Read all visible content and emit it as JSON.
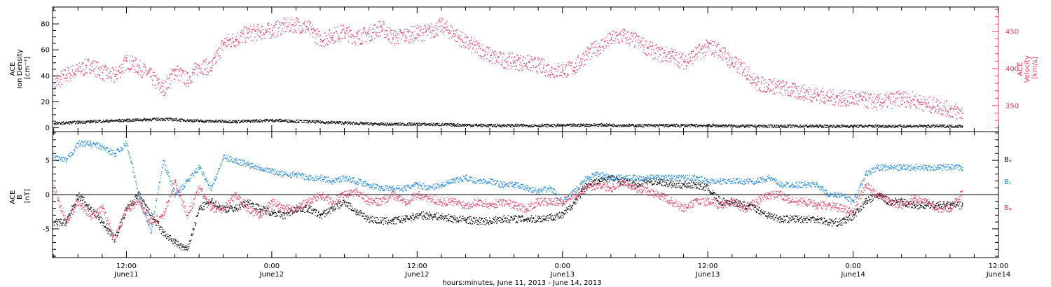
{
  "colors": {
    "black": "#000000",
    "pink": "#e83a64",
    "blue": "#1f86e0"
  },
  "xaxis": {
    "title": "hours:minutes, June 11, 2013 - June 14, 2013",
    "ticks": [
      {
        "t": 12,
        "time": "12:00",
        "date": "June11"
      },
      {
        "t": 24,
        "time": "0:00",
        "date": "June12"
      },
      {
        "t": 36,
        "time": "12:00",
        "date": "June12"
      },
      {
        "t": 48,
        "time": "0:00",
        "date": "June13"
      },
      {
        "t": 60,
        "time": "12:00",
        "date": "June13"
      },
      {
        "t": 72,
        "time": "0:00",
        "date": "June14"
      },
      {
        "t": 84,
        "time": "12:00",
        "date": "June14"
      }
    ]
  },
  "chart_data": [
    {
      "type": "scatter",
      "panel": "top",
      "xunit": "hours since 2013-06-11 00:00",
      "xlim": [
        5.9,
        84
      ],
      "left_axis": {
        "label_lines": [
          "ACE",
          "Ion Density",
          "[cm⁻³]"
        ],
        "ylim": [
          -3,
          93
        ],
        "ticks": [
          0,
          20,
          40,
          60,
          80
        ],
        "color": "#000000"
      },
      "right_axis": {
        "label_lines": [
          "ACE",
          "Velocity",
          "[km/s]"
        ],
        "ylim": [
          315,
          483
        ],
        "ticks": [
          350,
          400,
          450
        ],
        "color": "#e83a64"
      },
      "series": [
        {
          "axis": "right",
          "color": "#e83a64",
          "x": [
            6,
            7,
            8,
            9,
            10,
            11,
            12,
            13,
            14,
            15,
            16,
            17,
            18,
            19,
            20,
            21,
            22,
            23,
            24,
            25,
            26,
            27,
            28,
            29,
            30,
            31,
            32,
            33,
            34,
            35,
            36,
            37,
            38,
            39,
            40,
            41,
            42,
            43,
            44,
            45,
            46,
            47,
            48,
            49,
            50,
            51,
            52,
            53,
            54,
            55,
            56,
            57,
            58,
            59,
            60,
            61,
            62,
            63,
            64,
            65,
            66,
            67,
            68,
            69,
            70,
            71,
            72,
            73,
            74,
            75,
            76,
            77,
            78,
            79,
            80,
            81
          ],
          "values": [
            380,
            392,
            398,
            405,
            395,
            390,
            410,
            402,
            390,
            372,
            398,
            385,
            404,
            402,
            435,
            440,
            448,
            450,
            452,
            458,
            460,
            455,
            440,
            445,
            450,
            442,
            448,
            456,
            442,
            445,
            448,
            450,
            458,
            448,
            435,
            428,
            418,
            412,
            410,
            408,
            405,
            398,
            398,
            402,
            420,
            430,
            440,
            445,
            438,
            428,
            420,
            418,
            410,
            420,
            430,
            425,
            408,
            400,
            380,
            378,
            375,
            370,
            368,
            365,
            362,
            360,
            360,
            358,
            355,
            358,
            360,
            358,
            352,
            350,
            345,
            340
          ]
        },
        {
          "axis": "left",
          "color": "#000000",
          "x": [
            6,
            9,
            12,
            15,
            18,
            21,
            24,
            27,
            30,
            33,
            36,
            39,
            42,
            45,
            48,
            51,
            54,
            57,
            60,
            63,
            66,
            69,
            72,
            75,
            78,
            81
          ],
          "values": [
            3.5,
            5,
            6,
            7,
            5.5,
            5,
            6,
            5,
            4,
            3,
            3,
            2.5,
            2,
            2,
            2,
            2.5,
            2,
            2,
            2,
            1.5,
            1.5,
            1.5,
            1.5,
            1.5,
            1.5,
            1.5
          ]
        }
      ]
    },
    {
      "type": "scatter",
      "panel": "bottom",
      "xunit": "hours since 2013-06-11 00:00",
      "xlim": [
        5.9,
        84
      ],
      "yaxis": {
        "label_lines": [
          "ACE",
          "B",
          "[nT]"
        ],
        "ylim": [
          -9.2,
          9.2
        ],
        "ticks": [
          -5,
          0,
          5
        ]
      },
      "series": [
        {
          "name": "Bₓ",
          "color": "#000000",
          "x": [
            6,
            7,
            8,
            9,
            10,
            11,
            12,
            13,
            14,
            15,
            16,
            17,
            18,
            19,
            20,
            21,
            22,
            23,
            24,
            25,
            26,
            27,
            28,
            29,
            30,
            31,
            32,
            33,
            34,
            35,
            36,
            37,
            38,
            39,
            40,
            41,
            42,
            43,
            44,
            45,
            46,
            47,
            48,
            49,
            50,
            51,
            52,
            53,
            54,
            55,
            56,
            57,
            58,
            59,
            60,
            61,
            62,
            63,
            64,
            65,
            66,
            67,
            68,
            69,
            70,
            71,
            72,
            73,
            74,
            75,
            76,
            77,
            78,
            79,
            80,
            81
          ],
          "values": [
            -4,
            -4,
            0,
            -2,
            -4,
            -6.5,
            -2,
            0,
            -3,
            -5.5,
            -7,
            -8,
            -2,
            -1,
            -2,
            -2,
            -1,
            -2,
            -2.5,
            -3,
            -2,
            -2,
            -3,
            -2,
            -1,
            -2.5,
            -3.5,
            -3.8,
            -3.8,
            -3.5,
            -3,
            -3,
            -3.2,
            -3.5,
            -3.6,
            -3.8,
            -3.8,
            -3.5,
            -3.5,
            -3.5,
            -3.5,
            -3.2,
            -3,
            -1,
            1.5,
            2,
            2.5,
            2,
            1.5,
            2,
            2,
            1.5,
            1.5,
            1.5,
            1,
            -1,
            -1,
            -1.5,
            -2,
            -3,
            -3.5,
            -3.5,
            -3.5,
            -3.5,
            -4,
            -4,
            -3,
            -1,
            0,
            -1,
            -1,
            -1.5,
            -1.5,
            -1.5,
            -1.5,
            -1.5
          ]
        },
        {
          "name": "Bᵧ",
          "color": "#1f86e0",
          "x": [
            6,
            7,
            8,
            9,
            10,
            11,
            12,
            13,
            14,
            15,
            16,
            17,
            18,
            19,
            20,
            21,
            22,
            23,
            24,
            25,
            26,
            27,
            28,
            29,
            30,
            31,
            32,
            33,
            34,
            35,
            36,
            37,
            38,
            39,
            40,
            41,
            42,
            43,
            44,
            45,
            46,
            47,
            48,
            49,
            50,
            51,
            52,
            53,
            54,
            55,
            56,
            57,
            58,
            59,
            60,
            61,
            62,
            63,
            64,
            65,
            66,
            67,
            68,
            69,
            70,
            71,
            72,
            73,
            74,
            75,
            76,
            77,
            78,
            79,
            80,
            81
          ],
          "values": [
            5.5,
            5,
            7.5,
            7.5,
            7,
            6,
            7.5,
            0,
            -5.5,
            5,
            0,
            2,
            4,
            1,
            5.5,
            5,
            4.5,
            4,
            3.5,
            3,
            3,
            2.5,
            2.5,
            2,
            2.5,
            2,
            1.5,
            1,
            1,
            1,
            1.5,
            1,
            1.5,
            2,
            2.5,
            2,
            2,
            1.5,
            1.5,
            1,
            0.5,
            1,
            -1,
            0.5,
            2.5,
            3,
            2.5,
            2.5,
            2.5,
            2.5,
            2.5,
            2.5,
            2.5,
            2.5,
            2,
            2,
            2,
            2,
            2,
            2.5,
            1.5,
            1.5,
            1.5,
            1.5,
            0,
            0,
            -1,
            3,
            4,
            4,
            4,
            4,
            4,
            4,
            4,
            4
          ]
        },
        {
          "name": "Bᵩ",
          "color": "#e83a64",
          "x": [
            6,
            7,
            8,
            9,
            10,
            11,
            12,
            13,
            14,
            15,
            16,
            17,
            18,
            19,
            20,
            21,
            22,
            23,
            24,
            25,
            26,
            27,
            28,
            29,
            30,
            31,
            32,
            33,
            34,
            35,
            36,
            37,
            38,
            39,
            40,
            41,
            42,
            43,
            44,
            45,
            46,
            47,
            48,
            49,
            50,
            51,
            52,
            53,
            54,
            55,
            56,
            57,
            58,
            59,
            60,
            61,
            62,
            63,
            64,
            65,
            66,
            67,
            68,
            69,
            70,
            71,
            72,
            73,
            74,
            75,
            76,
            77,
            78,
            79,
            80,
            81
          ],
          "values": [
            1,
            -4,
            -1,
            -3,
            -2,
            -6.5,
            -2,
            -1,
            -4,
            -3,
            2,
            -3,
            1,
            -2,
            -2,
            0,
            -2,
            -3,
            -1,
            -2,
            -2,
            -1,
            0,
            -1,
            0,
            0.5,
            -1,
            -1,
            0,
            -1,
            0,
            -0.5,
            -1,
            -1,
            -1.5,
            -1,
            -1.5,
            -1,
            -1.5,
            -2,
            -1,
            -1,
            -1,
            0,
            1,
            1.5,
            1,
            2,
            1,
            0.5,
            0,
            -1,
            -2,
            -1,
            -1,
            -1.5,
            -1,
            -2,
            -1,
            0,
            0,
            -1,
            -1,
            -1.5,
            -1.5,
            -2,
            -2.5,
            1.5,
            0,
            -1,
            -1.5,
            -0.5,
            -1,
            -2,
            -2,
            0.5
          ]
        }
      ]
    }
  ]
}
